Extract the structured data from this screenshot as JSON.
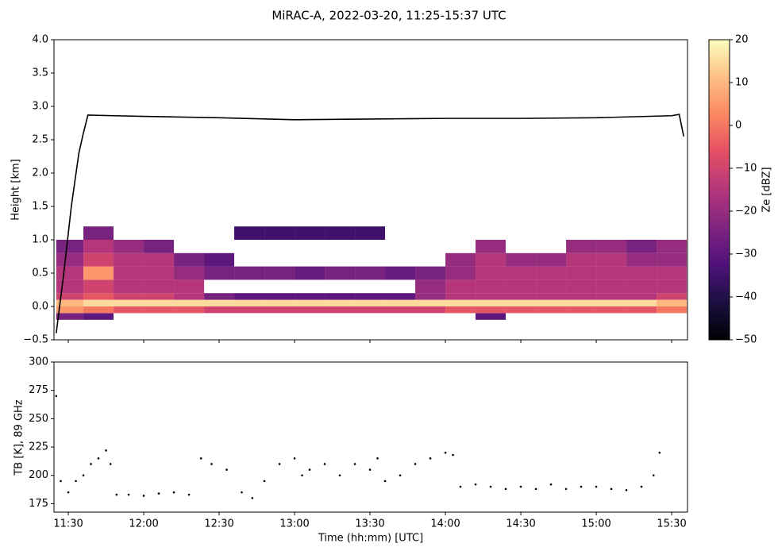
{
  "chart_data": [
    {
      "type": "heatmap",
      "title": "MiRAC-A, 2022-03-20, 11:25-15:37 UTC",
      "ylabel": "Height [km]",
      "xlim": [
        11.405,
        15.605
      ],
      "xticks": [
        11.5,
        12,
        12.5,
        13,
        13.5,
        14,
        14.5,
        15,
        15.5
      ],
      "ylim": [
        -0.5,
        4
      ],
      "yticks": [
        {
          "value": -0.5,
          "label": "−0.5"
        },
        {
          "value": 0,
          "label": "0.0"
        },
        0.5,
        {
          "value": 1,
          "label": "1.0"
        },
        1.5,
        {
          "value": 2,
          "label": "2.0"
        },
        2.5,
        {
          "value": 3,
          "label": "3.0"
        },
        3.5,
        {
          "value": 4,
          "label": "4.0"
        }
      ],
      "colormap": "magma",
      "clim": [
        -50,
        20
      ],
      "colorbar_ticks": [
        {
          "value": -50,
          "label": "−50"
        },
        {
          "value": -40,
          "label": "−40"
        },
        {
          "value": -30,
          "label": "−30"
        },
        {
          "value": -20,
          "label": "−20"
        },
        {
          "value": -10,
          "label": "−10"
        },
        0,
        10,
        20
      ],
      "colorbar_label": "Ze [dBZ]",
      "x_edges": [
        11.42,
        11.6,
        11.8,
        12.0,
        12.2,
        12.4,
        12.6,
        12.8,
        13.0,
        13.2,
        13.4,
        13.6,
        13.8,
        14.0,
        14.2,
        14.4,
        14.6,
        14.8,
        15.0,
        15.2,
        15.4,
        15.6
      ],
      "y_edges": [
        -0.2,
        -0.1,
        0.0,
        0.1,
        0.2,
        0.4,
        0.6,
        0.8,
        1.0,
        1.2
      ],
      "z": [
        [
          -25,
          5,
          10,
          -10,
          -15,
          -15,
          -20,
          -25,
          null
        ],
        [
          -30,
          0,
          15,
          -5,
          -10,
          5,
          -10,
          -15,
          -25
        ],
        [
          null,
          -5,
          15,
          -10,
          -15,
          -15,
          -15,
          -20,
          null
        ],
        [
          null,
          -5,
          15,
          -10,
          -15,
          -15,
          -15,
          -25,
          null
        ],
        [
          null,
          -5,
          15,
          -15,
          -15,
          -20,
          -25,
          null,
          null
        ],
        [
          null,
          -10,
          15,
          -25,
          null,
          -25,
          -30,
          null,
          null
        ],
        [
          null,
          -10,
          15,
          -30,
          null,
          -25,
          null,
          null,
          -35
        ],
        [
          null,
          -10,
          15,
          -30,
          null,
          -25,
          null,
          null,
          -35
        ],
        [
          null,
          -10,
          15,
          -30,
          null,
          -28,
          null,
          null,
          -35
        ],
        [
          null,
          -10,
          15,
          -30,
          null,
          -25,
          null,
          null,
          -35
        ],
        [
          null,
          -10,
          15,
          -30,
          null,
          -25,
          null,
          null,
          -35
        ],
        [
          null,
          -10,
          15,
          -30,
          null,
          -28,
          null,
          null,
          null
        ],
        [
          null,
          -10,
          15,
          -20,
          -20,
          -25,
          null,
          null,
          null
        ],
        [
          null,
          -5,
          15,
          -15,
          -15,
          -20,
          -20,
          null,
          null
        ],
        [
          -30,
          -5,
          15,
          -15,
          -15,
          -15,
          -15,
          -20,
          null
        ],
        [
          null,
          -5,
          15,
          -15,
          -15,
          -15,
          -20,
          null,
          null
        ],
        [
          null,
          -5,
          15,
          -15,
          -15,
          -15,
          -20,
          null,
          null
        ],
        [
          null,
          -5,
          15,
          -15,
          -15,
          -15,
          -15,
          -20,
          null
        ],
        [
          null,
          -5,
          15,
          -15,
          -15,
          -15,
          -15,
          -20,
          null
        ],
        [
          null,
          -5,
          15,
          -15,
          -15,
          -15,
          -20,
          -25,
          null
        ],
        [
          null,
          0,
          10,
          -10,
          -15,
          -15,
          -20,
          -20,
          null
        ]
      ],
      "series": [
        {
          "color": "#000000",
          "x": [
            11.42,
            11.47,
            11.52,
            11.57,
            11.6,
            11.63,
            11.8,
            12.0,
            12.5,
            13.0,
            13.5,
            14.0,
            14.5,
            15.0,
            15.5,
            15.55,
            15.58
          ],
          "values": [
            -0.4,
            0.5,
            1.5,
            2.3,
            2.6,
            2.87,
            2.86,
            2.85,
            2.83,
            2.8,
            2.81,
            2.82,
            2.82,
            2.83,
            2.86,
            2.88,
            2.55
          ]
        }
      ]
    },
    {
      "type": "scatter",
      "ylabel": "TB [K], 89 GHz",
      "xlabel": "Time (hh:mm) [UTC]",
      "xlim": [
        11.405,
        15.605
      ],
      "xticks": [
        {
          "value": 11.5,
          "label": "11:30"
        },
        {
          "value": 12,
          "label": "12:00"
        },
        {
          "value": 12.5,
          "label": "12:30"
        },
        {
          "value": 13,
          "label": "13:00"
        },
        {
          "value": 13.5,
          "label": "13:30"
        },
        {
          "value": 14,
          "label": "14:00"
        },
        {
          "value": 14.5,
          "label": "14:30"
        },
        {
          "value": 15,
          "label": "15:00"
        },
        {
          "value": 15.5,
          "label": "15:30"
        }
      ],
      "ylim": [
        167.6,
        300
      ],
      "yticks": [
        175,
        200,
        225,
        250,
        275,
        300
      ],
      "color": "#000000",
      "x": [
        11.42,
        11.45,
        11.5,
        11.55,
        11.6,
        11.65,
        11.7,
        11.75,
        11.78,
        11.82,
        11.9,
        12.0,
        12.1,
        12.2,
        12.3,
        12.38,
        12.45,
        12.55,
        12.65,
        12.72,
        12.8,
        12.9,
        13.0,
        13.05,
        13.1,
        13.2,
        13.3,
        13.4,
        13.5,
        13.55,
        13.6,
        13.7,
        13.8,
        13.9,
        14.0,
        14.05,
        14.1,
        14.2,
        14.3,
        14.4,
        14.5,
        14.6,
        14.7,
        14.8,
        14.9,
        15.0,
        15.1,
        15.2,
        15.3,
        15.38,
        15.42
      ],
      "values": [
        270,
        195,
        185,
        195,
        200,
        210,
        215,
        222,
        210,
        183,
        183,
        182,
        184,
        185,
        183,
        215,
        210,
        205,
        185,
        180,
        195,
        210,
        215,
        200,
        205,
        210,
        200,
        210,
        205,
        215,
        195,
        200,
        210,
        215,
        220,
        218,
        190,
        192,
        190,
        188,
        190,
        188,
        192,
        188,
        190,
        190,
        188,
        187,
        190,
        200,
        220
      ]
    }
  ]
}
